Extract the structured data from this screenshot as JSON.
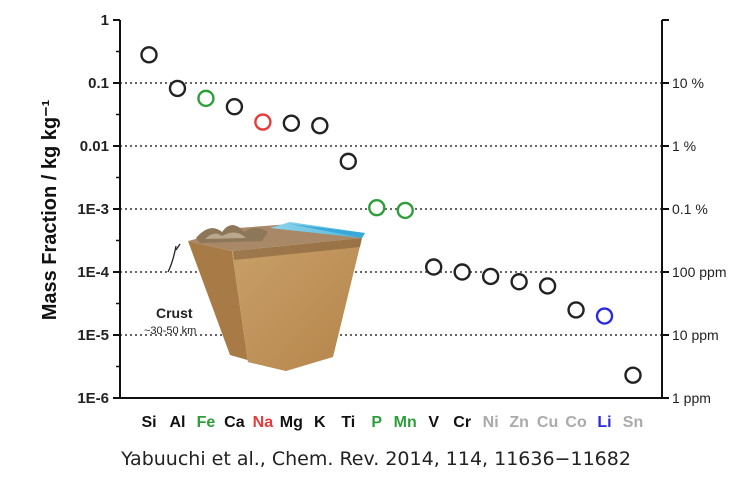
{
  "chart_data": {
    "type": "scatter",
    "ylabel": "Mass Fraction  /  kg kg⁻¹",
    "yscale": "log",
    "ylim": [
      1e-06,
      1
    ],
    "y_ticks": [
      {
        "value": 1,
        "label": "1"
      },
      {
        "value": 0.1,
        "label": "0.1"
      },
      {
        "value": 0.01,
        "label": "0.01"
      },
      {
        "value": 0.001,
        "label": "1E-3"
      },
      {
        "value": 0.0001,
        "label": "1E-4"
      },
      {
        "value": 1e-05,
        "label": "1E-5"
      },
      {
        "value": 1e-06,
        "label": "1E-6"
      }
    ],
    "y2_ticks": [
      {
        "value": 0.1,
        "label": "10 %"
      },
      {
        "value": 0.01,
        "label": "1 %"
      },
      {
        "value": 0.001,
        "label": "0.1 %"
      },
      {
        "value": 0.0001,
        "label": "100 ppm"
      },
      {
        "value": 1e-05,
        "label": "10 ppm"
      },
      {
        "value": 1e-06,
        "label": "1 ppm"
      }
    ],
    "grid": "dotted horizontal lines at 0.1, 0.01, 1E-3, 1E-4, 1E-5",
    "points": [
      {
        "element": "Si",
        "value": 0.28,
        "color": "#222222",
        "label_color": "#111111"
      },
      {
        "element": "Al",
        "value": 0.082,
        "color": "#222222",
        "label_color": "#111111"
      },
      {
        "element": "Fe",
        "value": 0.057,
        "color": "#2e9e3a",
        "label_color": "#2e9e3a"
      },
      {
        "element": "Ca",
        "value": 0.042,
        "color": "#222222",
        "label_color": "#111111"
      },
      {
        "element": "Na",
        "value": 0.024,
        "color": "#e83a3a",
        "label_color": "#e83a3a"
      },
      {
        "element": "Mg",
        "value": 0.023,
        "color": "#222222",
        "label_color": "#111111"
      },
      {
        "element": "K",
        "value": 0.021,
        "color": "#222222",
        "label_color": "#111111"
      },
      {
        "element": "Ti",
        "value": 0.0057,
        "color": "#222222",
        "label_color": "#111111"
      },
      {
        "element": "P",
        "value": 0.00105,
        "color": "#2e9e3a",
        "label_color": "#2e9e3a"
      },
      {
        "element": "Mn",
        "value": 0.00095,
        "color": "#2e9e3a",
        "label_color": "#2e9e3a"
      },
      {
        "element": "V",
        "value": 0.00012,
        "color": "#222222",
        "label_color": "#111111"
      },
      {
        "element": "Cr",
        "value": 0.0001,
        "color": "#222222",
        "label_color": "#111111"
      },
      {
        "element": "Ni",
        "value": 8.5e-05,
        "color": "#222222",
        "label_color": "#aaaaaa"
      },
      {
        "element": "Zn",
        "value": 7e-05,
        "color": "#222222",
        "label_color": "#aaaaaa"
      },
      {
        "element": "Cu",
        "value": 6e-05,
        "color": "#222222",
        "label_color": "#aaaaaa"
      },
      {
        "element": "Co",
        "value": 2.5e-05,
        "color": "#222222",
        "label_color": "#aaaaaa"
      },
      {
        "element": "Li",
        "value": 2e-05,
        "color": "#2a2ae0",
        "label_color": "#2a2ae0"
      },
      {
        "element": "Sn",
        "value": 2.3e-06,
        "color": "#222222",
        "label_color": "#aaaaaa"
      }
    ],
    "inset": {
      "label": "Crust",
      "sublabel": "~30-50 km"
    }
  },
  "citation": "Yabuuchi et al., Chem. Rev. 2014, 114, 11636−11682"
}
